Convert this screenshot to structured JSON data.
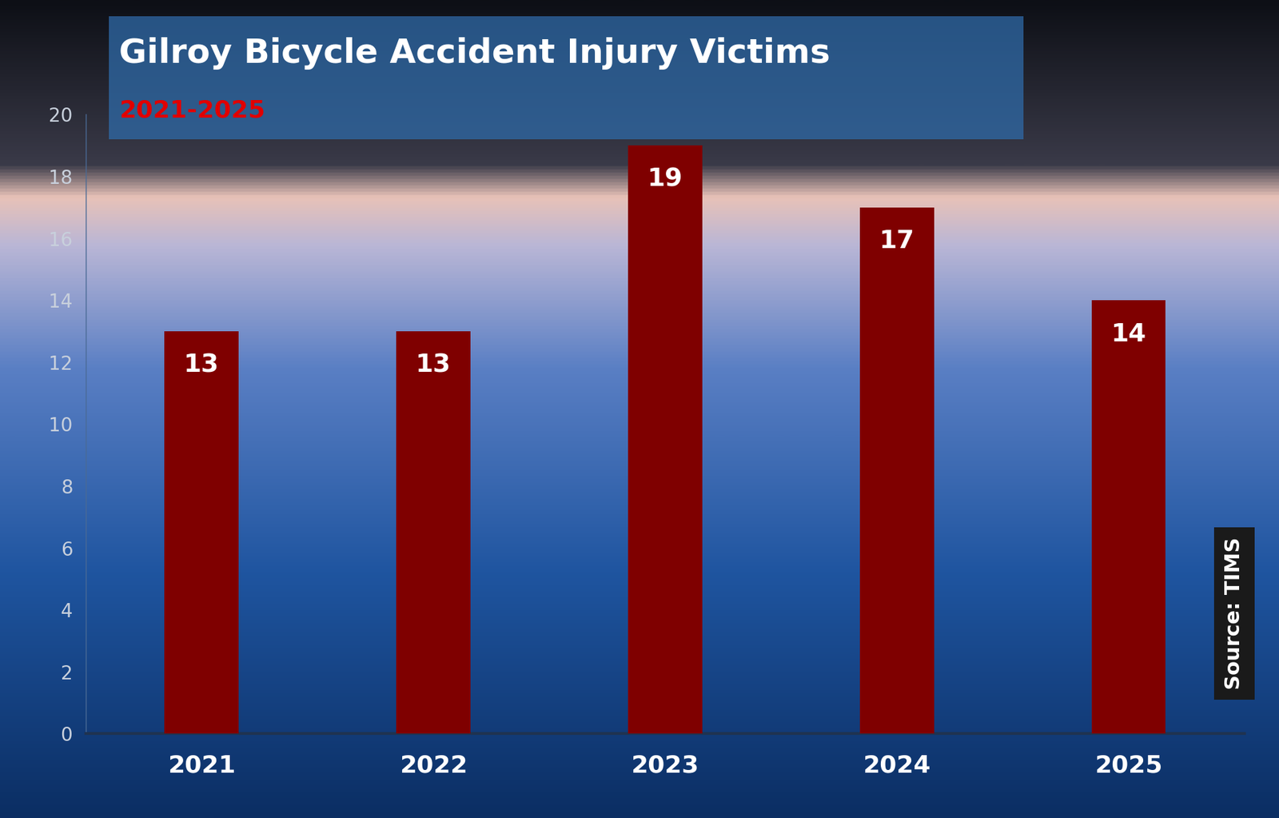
{
  "chart_data": {
    "type": "bar",
    "title": "Gilroy Bicycle Accident Injury Victims",
    "subtitle": "2021-2025",
    "source": "Source: TIMS",
    "categories": [
      "2021",
      "2022",
      "2023",
      "2024",
      "2025"
    ],
    "values": [
      13,
      13,
      19,
      17,
      14
    ],
    "color": "#7f0000",
    "ylim": [
      0,
      20
    ],
    "yticks": [
      0,
      2,
      4,
      6,
      8,
      10,
      12,
      14,
      16,
      18,
      20
    ],
    "grid": false,
    "data_labels": true
  }
}
